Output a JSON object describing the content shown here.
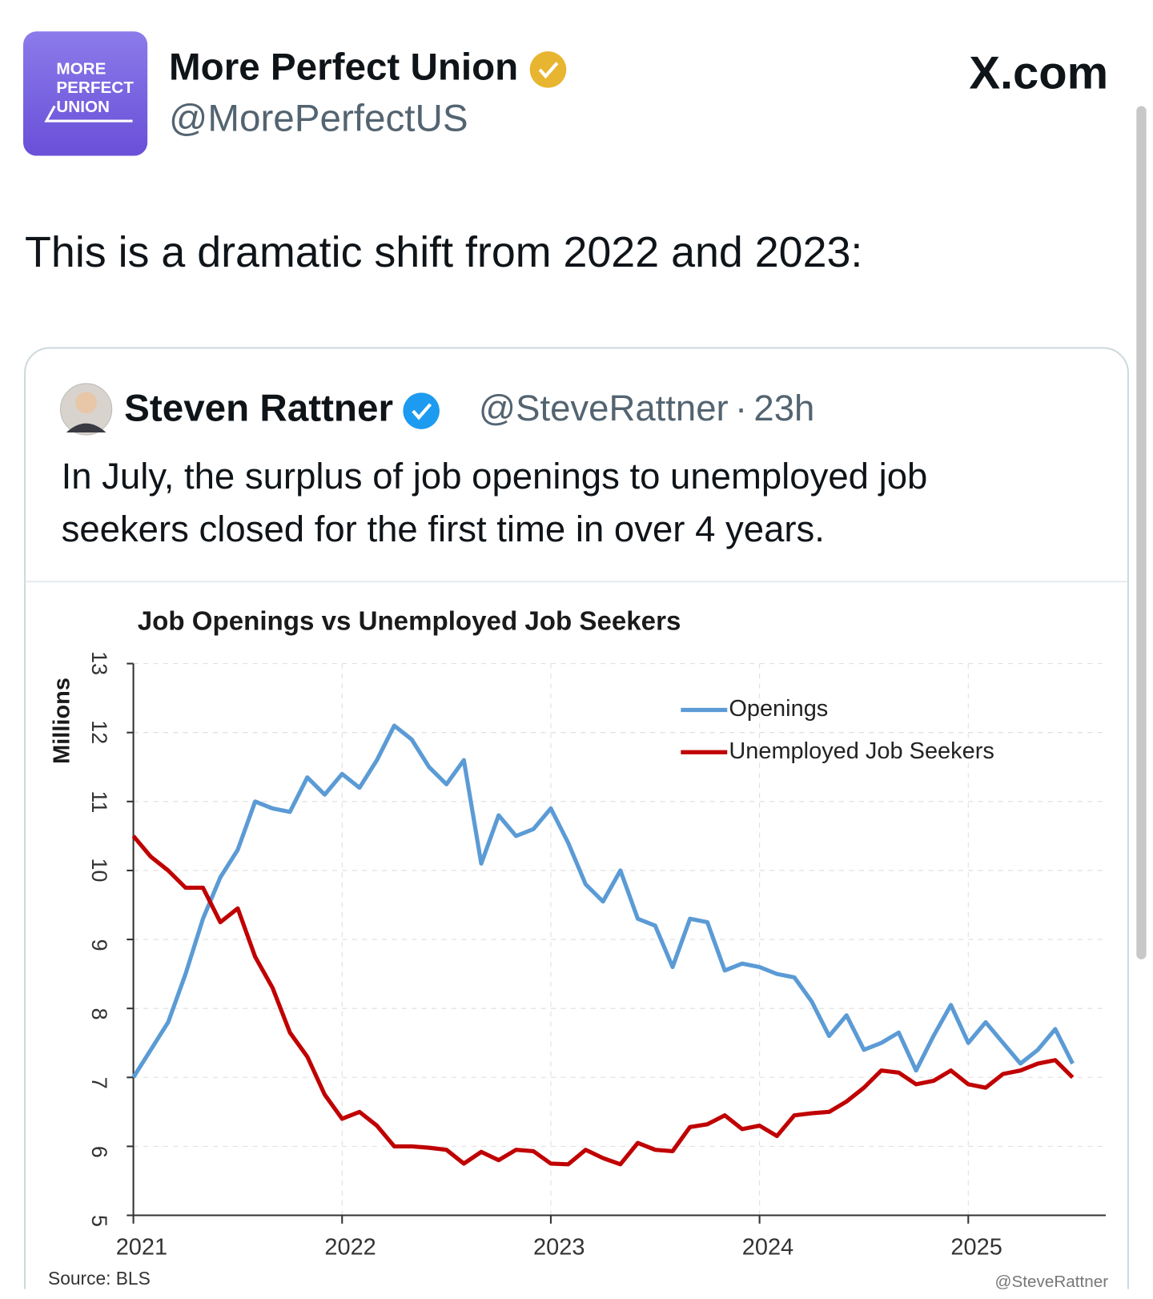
{
  "post": {
    "logo_lines": [
      "MORE",
      "PERFECT",
      "UNION"
    ],
    "name": "More Perfect Union",
    "handle": "@MorePerfectUS",
    "site": "X.com",
    "text": "This is a dramatic shift from 2022 and 2023:"
  },
  "quote": {
    "name": "Steven Rattner",
    "handle": "@SteveRattner",
    "separator": "·",
    "time": "23h",
    "text_lines": [
      "In July, the surplus of job openings to unemployed job",
      "seekers closed for the first time in over 4 years."
    ]
  },
  "chart_data": {
    "type": "line",
    "title": "Job Openings vs Unemployed Job Seekers",
    "y_label": "Millions",
    "source": "Source: BLS",
    "credit": "@SteveRattner",
    "categories": [
      "2021",
      null,
      null,
      null,
      null,
      null,
      null,
      null,
      null,
      null,
      null,
      null,
      "2022",
      null,
      null,
      null,
      null,
      null,
      null,
      null,
      null,
      null,
      null,
      null,
      "2023",
      null,
      null,
      null,
      null,
      null,
      null,
      null,
      null,
      null,
      null,
      null,
      "2024",
      null,
      null,
      null,
      null,
      null,
      null,
      null,
      null,
      null,
      null,
      null,
      "2025",
      null,
      null,
      null,
      null,
      null,
      null
    ],
    "ylim": [
      5,
      13
    ],
    "yticks": [
      5,
      6,
      7,
      8,
      9,
      10,
      11,
      12,
      13
    ],
    "grid": true,
    "legend": "top-right",
    "series": [
      {
        "name": "Openings",
        "color": "#5b9bd5",
        "values": [
          7.0,
          7.4,
          7.8,
          8.5,
          9.3,
          9.9,
          10.3,
          11.0,
          10.9,
          10.85,
          11.35,
          11.1,
          11.4,
          11.2,
          11.6,
          12.1,
          11.9,
          11.5,
          11.25,
          11.6,
          10.1,
          10.8,
          10.5,
          10.6,
          10.9,
          10.4,
          9.8,
          9.55,
          10.0,
          9.3,
          9.2,
          8.6,
          9.3,
          9.25,
          8.55,
          8.65,
          8.6,
          8.5,
          8.45,
          8.1,
          7.6,
          7.9,
          7.4,
          7.5,
          7.65,
          7.1,
          7.6,
          8.05,
          7.5,
          7.8,
          7.5,
          7.2,
          7.4,
          7.7,
          7.2
        ]
      },
      {
        "name": "Unemployed Job Seekers",
        "color": "#c00000",
        "values": [
          10.5,
          10.2,
          10.0,
          9.75,
          9.75,
          9.25,
          9.45,
          8.75,
          8.3,
          7.65,
          7.3,
          6.75,
          6.4,
          6.5,
          6.3,
          6.0,
          6.0,
          5.98,
          5.95,
          5.75,
          5.92,
          5.8,
          5.95,
          5.93,
          5.75,
          5.74,
          5.95,
          5.83,
          5.74,
          6.05,
          5.95,
          5.93,
          6.28,
          6.32,
          6.45,
          6.25,
          6.3,
          6.15,
          6.45,
          6.48,
          6.5,
          6.65,
          6.85,
          7.1,
          7.07,
          6.9,
          6.95,
          7.1,
          6.9,
          6.85,
          7.05,
          7.1,
          7.2,
          7.25,
          7.0
        ]
      }
    ]
  }
}
